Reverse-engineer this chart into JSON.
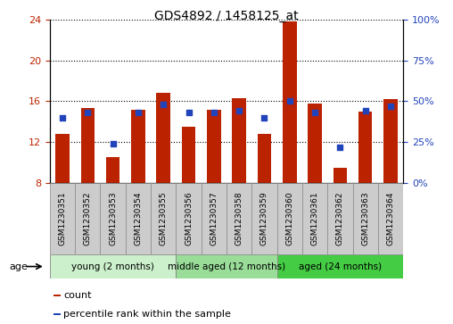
{
  "title": "GDS4892 / 1458125_at",
  "samples": [
    "GSM1230351",
    "GSM1230352",
    "GSM1230353",
    "GSM1230354",
    "GSM1230355",
    "GSM1230356",
    "GSM1230357",
    "GSM1230358",
    "GSM1230359",
    "GSM1230360",
    "GSM1230361",
    "GSM1230362",
    "GSM1230363",
    "GSM1230364"
  ],
  "count_values": [
    12.8,
    15.3,
    10.5,
    15.2,
    16.8,
    13.5,
    15.2,
    16.3,
    12.8,
    23.8,
    15.8,
    9.5,
    15.0,
    16.2
  ],
  "percentile_values": [
    40,
    43,
    24,
    43,
    48,
    43,
    43,
    44,
    40,
    50,
    43,
    22,
    44,
    47
  ],
  "bar_bottom": 8,
  "ylim_left": [
    8,
    24
  ],
  "ylim_right": [
    0,
    100
  ],
  "yticks_left": [
    8,
    12,
    16,
    20,
    24
  ],
  "ytick_labels_left": [
    "8",
    "12",
    "16",
    "20",
    "24"
  ],
  "yticks_right": [
    0,
    25,
    50,
    75,
    100
  ],
  "ytick_labels_right": [
    "0%",
    "25%",
    "50%",
    "75%",
    "100%"
  ],
  "bar_color": "#bb2200",
  "percentile_color": "#2244bb",
  "bar_width": 0.55,
  "xtick_bg": "#cccccc",
  "group_colors": [
    "#ccf0cc",
    "#99dd99",
    "#44cc44"
  ],
  "groups": [
    {
      "label": "young (2 months)",
      "start": 0,
      "end": 5
    },
    {
      "label": "middle aged (12 months)",
      "start": 5,
      "end": 9
    },
    {
      "label": "aged (24 months)",
      "start": 9,
      "end": 14
    }
  ],
  "age_label": "age",
  "legend_count_label": "count",
  "legend_pct_label": "percentile rank within the sample",
  "title_fontsize": 10,
  "axis_fontsize": 8,
  "label_fontsize": 6.5,
  "group_fontsize": 7.5
}
